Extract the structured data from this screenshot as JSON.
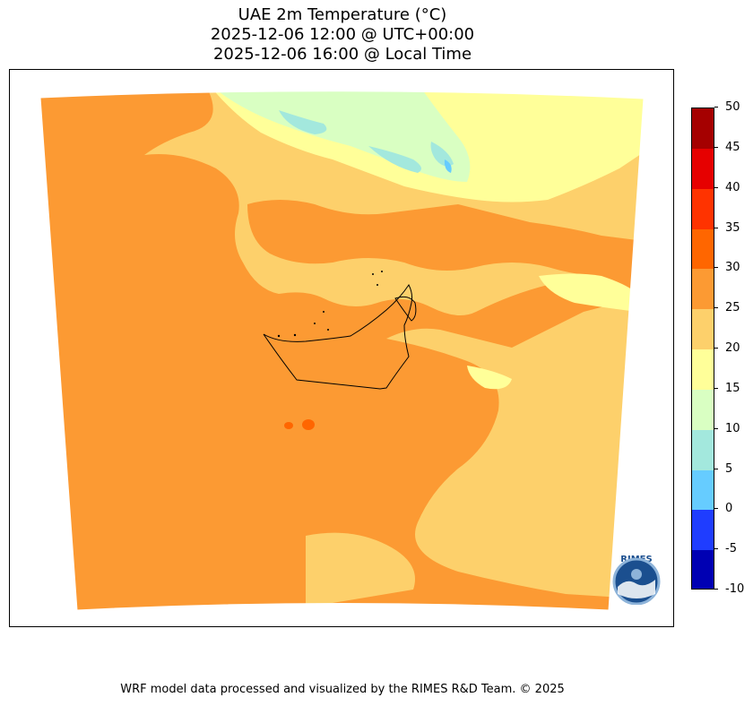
{
  "title": {
    "line1": "UAE 2m Temperature (°C)",
    "line2": "2025-12-06 12:00 @ UTC+00:00",
    "line3": "2025-12-06 16:00 @ Local Time"
  },
  "colorbar": {
    "ticks": [
      "50",
      "45",
      "40",
      "35",
      "30",
      "25",
      "20",
      "15",
      "10",
      "5",
      "0",
      "-5",
      "-10"
    ],
    "bands": [
      {
        "color": "#a50000"
      },
      {
        "color": "#e60000"
      },
      {
        "color": "#ff3300"
      },
      {
        "color": "#ff6600"
      },
      {
        "color": "#fc9a33"
      },
      {
        "color": "#fdd06b"
      },
      {
        "color": "#ffff99"
      },
      {
        "color": "#d9ffc2"
      },
      {
        "color": "#a3e8dd"
      },
      {
        "color": "#66ccff"
      },
      {
        "color": "#1f3dff"
      },
      {
        "color": "#0000b3"
      }
    ]
  },
  "logo": {
    "text": "RIMES",
    "icon": "rimes-logo-icon"
  },
  "footer": {
    "credit": "WRF model data processed and visualized by the RIMES R&D Team. © 2025"
  },
  "colors": {
    "hot": "#fc9a33",
    "warm": "#fdd06b",
    "mild": "#ffff99",
    "cool": "#d9ffc2",
    "cold": "#a3e8dd",
    "colder": "#66ccff",
    "hottest": "#ff6600"
  }
}
